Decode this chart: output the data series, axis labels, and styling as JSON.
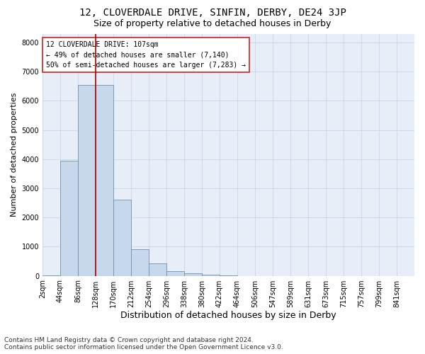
{
  "title_line1": "12, CLOVERDALE DRIVE, SINFIN, DERBY, DE24 3JP",
  "title_line2": "Size of property relative to detached houses in Derby",
  "xlabel": "Distribution of detached houses by size in Derby",
  "ylabel": "Number of detached properties",
  "footnote": "Contains HM Land Registry data © Crown copyright and database right 2024.\nContains public sector information licensed under the Open Government Licence v3.0.",
  "bin_labels": [
    "2sqm",
    "44sqm",
    "86sqm",
    "128sqm",
    "170sqm",
    "212sqm",
    "254sqm",
    "296sqm",
    "338sqm",
    "380sqm",
    "422sqm",
    "464sqm",
    "506sqm",
    "547sqm",
    "589sqm",
    "631sqm",
    "673sqm",
    "715sqm",
    "757sqm",
    "799sqm",
    "841sqm"
  ],
  "bar_values": [
    25,
    3950,
    6550,
    6550,
    2600,
    900,
    430,
    150,
    80,
    30,
    10,
    0,
    0,
    0,
    0,
    0,
    0,
    0,
    0,
    0,
    0
  ],
  "bar_color": "#c8d8ec",
  "bar_edgecolor": "#7090b0",
  "vline_color": "#aa0000",
  "vline_x": 3,
  "annotation_text": "12 CLOVERDALE DRIVE: 107sqm\n← 49% of detached houses are smaller (7,140)\n50% of semi-detached houses are larger (7,283) →",
  "annotation_box_facecolor": "white",
  "annotation_box_edgecolor": "#cc2222",
  "ylim_max": 8300,
  "yticks": [
    0,
    1000,
    2000,
    3000,
    4000,
    5000,
    6000,
    7000,
    8000
  ],
  "grid_color": "#c8d4e8",
  "plot_bg": "#e8eef8",
  "fig_bg": "#ffffff",
  "title1_fontsize": 10,
  "title2_fontsize": 9,
  "xlabel_fontsize": 9,
  "ylabel_fontsize": 8,
  "tick_fontsize": 7,
  "annot_fontsize": 7,
  "footnote_fontsize": 6.5
}
